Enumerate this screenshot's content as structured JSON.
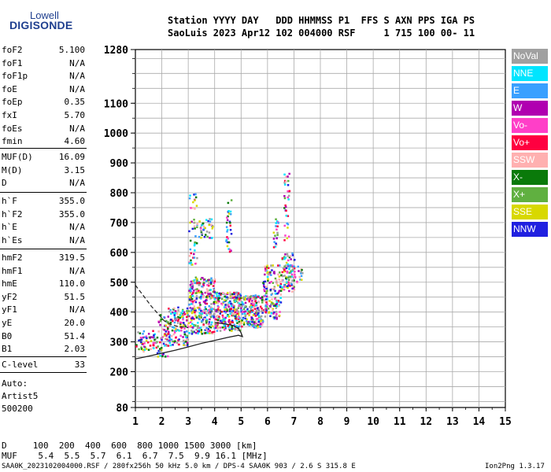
{
  "logo": {
    "line1": "Lowell",
    "line2": "DIGISONDE"
  },
  "header": {
    "line1": "Station YYYY DAY   DDD HHMMSS P1  FFS S AXN PPS IGA PS",
    "line2": "SaoLuis 2023 Apr12 102 004000 RSF     1 715 100 00- 11"
  },
  "params_a": [
    {
      "name": "foF2",
      "value": "5.100"
    },
    {
      "name": "foF1",
      "value": "N/A"
    },
    {
      "name": "foF1p",
      "value": "N/A"
    },
    {
      "name": "foE",
      "value": "N/A"
    },
    {
      "name": "foEp",
      "value": "0.35"
    },
    {
      "name": "fxI",
      "value": "5.70"
    },
    {
      "name": "foEs",
      "value": "N/A"
    },
    {
      "name": "fmin",
      "value": "4.60"
    }
  ],
  "params_b": [
    {
      "name": "MUF(D)",
      "value": "16.09"
    },
    {
      "name": "M(D)",
      "value": "3.15"
    },
    {
      "name": "D",
      "value": "N/A"
    }
  ],
  "params_c": [
    {
      "name": "h`F",
      "value": "355.0"
    },
    {
      "name": "h`F2",
      "value": "355.0"
    },
    {
      "name": "h`E",
      "value": "N/A"
    },
    {
      "name": "h`Es",
      "value": "N/A"
    }
  ],
  "params_d": [
    {
      "name": "hmF2",
      "value": "319.5"
    },
    {
      "name": "hmF1",
      "value": "N/A"
    },
    {
      "name": "hmE",
      "value": "110.0"
    },
    {
      "name": "yF2",
      "value": "51.5"
    },
    {
      "name": "yF1",
      "value": "N/A"
    },
    {
      "name": "yE",
      "value": "20.0"
    },
    {
      "name": "B0",
      "value": "51.4"
    },
    {
      "name": "B1",
      "value": "2.03"
    }
  ],
  "clevel": {
    "name": "C-level",
    "value": "33"
  },
  "auto": {
    "line1": "Auto:",
    "line2": "Artist5",
    "line3": "500200"
  },
  "legend": [
    {
      "label": "NoVal",
      "color": "#a0a0a0"
    },
    {
      "label": "NNE",
      "color": "#00e5ff"
    },
    {
      "label": "E",
      "color": "#3aa0ff"
    },
    {
      "label": "W",
      "color": "#b000b0"
    },
    {
      "label": "Vo-",
      "color": "#ff3fc8"
    },
    {
      "label": "Vo+",
      "color": "#ff0040"
    },
    {
      "label": "SSW",
      "color": "#ffb0b0"
    },
    {
      "label": "X-",
      "color": "#0a7a0a"
    },
    {
      "label": "X+",
      "color": "#60b040"
    },
    {
      "label": "SSE",
      "color": "#d8d800"
    },
    {
      "label": "NNW",
      "color": "#2020e0"
    }
  ],
  "footer": {
    "d_line": "D     100  200  400  600  800 1000 1500 3000 [km]",
    "muf_line": "MUF    5.4  5.5  5.7  6.1  6.7  7.5  9.9 16.1 [MHz]",
    "file_line": "SAA0K_2023102004000.RSF / 280fx256h 50 kHz 5.0 km / DPS-4 SAA0K 903 / 2.6 S 315.8 E",
    "version": "Ion2Png 1.3.17"
  },
  "chart_data": {
    "type": "scatter",
    "xlim": [
      1,
      15
    ],
    "ylim": [
      80,
      1280
    ],
    "x_ticks": [
      "1",
      "2",
      "3",
      "4",
      "5",
      "6",
      "7",
      "8",
      "9",
      "10",
      "11",
      "12",
      "13",
      "14",
      "15"
    ],
    "y_ticks": [
      {
        "v": 80,
        "label": "80"
      },
      {
        "v": 200,
        "label": "200"
      },
      {
        "v": 300,
        "label": "300"
      },
      {
        "v": 400,
        "label": "400"
      },
      {
        "v": 500,
        "label": "500"
      },
      {
        "v": 600,
        "label": "600"
      },
      {
        "v": 700,
        "label": "700"
      },
      {
        "v": 800,
        "label": "800"
      },
      {
        "v": 900,
        "label": "900"
      },
      {
        "v": 1000,
        "label": "1000"
      },
      {
        "v": 1100,
        "label": "1100"
      },
      {
        "v": 1280,
        "label": "1280"
      }
    ],
    "grid": true,
    "echo_regions": [
      {
        "x": [
          1.0,
          1.8
        ],
        "y": [
          270,
          340
        ],
        "n": 60
      },
      {
        "x": [
          1.8,
          2.2
        ],
        "y": [
          250,
          400
        ],
        "n": 60
      },
      {
        "x": [
          2.2,
          3.0
        ],
        "y": [
          290,
          420
        ],
        "n": 140
      },
      {
        "x": [
          3.0,
          4.0
        ],
        "y": [
          330,
          520
        ],
        "n": 320
      },
      {
        "x": [
          4.0,
          5.0
        ],
        "y": [
          340,
          470
        ],
        "n": 280
      },
      {
        "x": [
          5.0,
          5.8
        ],
        "y": [
          350,
          460
        ],
        "n": 180
      },
      {
        "x": [
          5.8,
          6.5
        ],
        "y": [
          380,
          560
        ],
        "n": 150
      },
      {
        "x": [
          6.5,
          7.0
        ],
        "y": [
          470,
          600
        ],
        "n": 90
      },
      {
        "x": [
          3.0,
          3.3
        ],
        "y": [
          560,
          800
        ],
        "n": 45
      },
      {
        "x": [
          3.3,
          3.9
        ],
        "y": [
          650,
          720
        ],
        "n": 40
      },
      {
        "x": [
          4.4,
          4.6
        ],
        "y": [
          600,
          790
        ],
        "n": 30
      },
      {
        "x": [
          6.6,
          6.8
        ],
        "y": [
          640,
          870
        ],
        "n": 35
      },
      {
        "x": [
          6.2,
          6.4
        ],
        "y": [
          620,
          720
        ],
        "n": 20
      },
      {
        "x": [
          6.9,
          7.3
        ],
        "y": [
          500,
          560
        ],
        "n": 25
      }
    ],
    "trace_dashed": [
      [
        1.0,
        490
      ],
      [
        1.3,
        455
      ],
      [
        1.6,
        420
      ],
      [
        1.9,
        390
      ],
      [
        2.1,
        370
      ],
      [
        2.3,
        360
      ],
      [
        2.6,
        352
      ],
      [
        3.0,
        348
      ]
    ],
    "trace_solid": [
      [
        1.0,
        243
      ],
      [
        1.5,
        252
      ],
      [
        2.0,
        262
      ],
      [
        2.5,
        272
      ],
      [
        3.0,
        283
      ],
      [
        3.5,
        295
      ],
      [
        4.0,
        305
      ],
      [
        4.5,
        315
      ],
      [
        4.9,
        322
      ],
      [
        5.05,
        318
      ],
      [
        5.0,
        330
      ],
      [
        4.9,
        345
      ],
      [
        4.7,
        355
      ],
      [
        4.4,
        360
      ],
      [
        4.0,
        365
      ]
    ]
  }
}
